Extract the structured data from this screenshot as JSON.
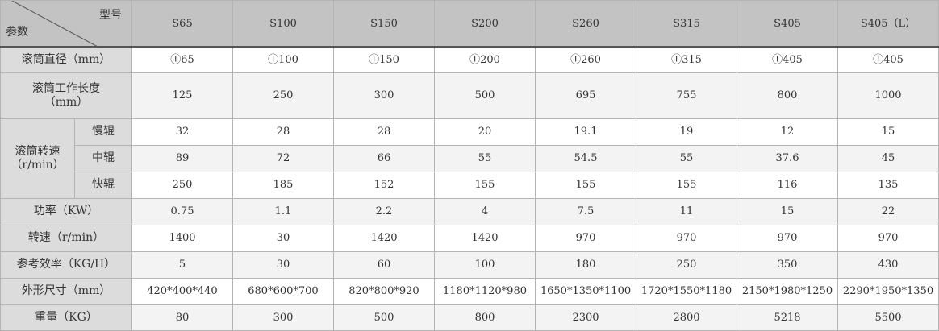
{
  "header": {
    "corner_top": "型号",
    "corner_bottom": "参数",
    "models": [
      "S65",
      "S100",
      "S150",
      "S200",
      "S260",
      "S315",
      "S405",
      "S405（L）"
    ]
  },
  "rows": {
    "diameter": {
      "label": "滚筒直径（mm）",
      "values": [
        "Ⓘ65",
        "Ⓘ100",
        "Ⓘ150",
        "Ⓘ200",
        "Ⓘ260",
        "Ⓘ315",
        "Ⓘ405",
        "Ⓘ405"
      ]
    },
    "length": {
      "label": "滚筒工作长度",
      "unit": "（mm）",
      "values": [
        "125",
        "250",
        "300",
        "500",
        "695",
        "755",
        "800",
        "1000"
      ]
    },
    "speed": {
      "label": "滚筒转速",
      "unit": "（r/min）",
      "slow": {
        "label": "慢辊",
        "values": [
          "32",
          "28",
          "28",
          "20",
          "19.1",
          "19",
          "12",
          "15"
        ]
      },
      "mid": {
        "label": "中辊",
        "values": [
          "89",
          "72",
          "66",
          "55",
          "54.5",
          "55",
          "37.6",
          "45"
        ]
      },
      "fast": {
        "label": "快辊",
        "values": [
          "250",
          "185",
          "152",
          "155",
          "155",
          "155",
          "116",
          "135"
        ]
      }
    },
    "power": {
      "label": "功率（KW）",
      "values": [
        "0.75",
        "1.1",
        "2.2",
        "4",
        "7.5",
        "11",
        "15",
        "22"
      ]
    },
    "rpm": {
      "label": "转速（r/min）",
      "values": [
        "1400",
        "30",
        "1420",
        "1420",
        "970",
        "970",
        "970",
        "970"
      ]
    },
    "efficiency": {
      "label": "参考效率（KG/H）",
      "values": [
        "5",
        "30",
        "60",
        "100",
        "180",
        "250",
        "350",
        "430"
      ]
    },
    "dimensions": {
      "label": "外形尺寸（mm）",
      "values": [
        "420*400*440",
        "680*600*700",
        "820*800*920",
        "1180*1120*980",
        "1650*1350*1100",
        "1720*1550*1180",
        "2150*1980*1250",
        "2290*1950*1350"
      ]
    },
    "weight": {
      "label": "重量（KG）",
      "values": [
        "80",
        "300",
        "500",
        "800",
        "2300",
        "2800",
        "5218",
        "5500"
      ]
    }
  },
  "colors": {
    "header_bg": "#c3c3c3",
    "label_bg": "#dcdcdc",
    "alt_row_bg": "#f3f3f3",
    "border": "#b4b4b4"
  }
}
